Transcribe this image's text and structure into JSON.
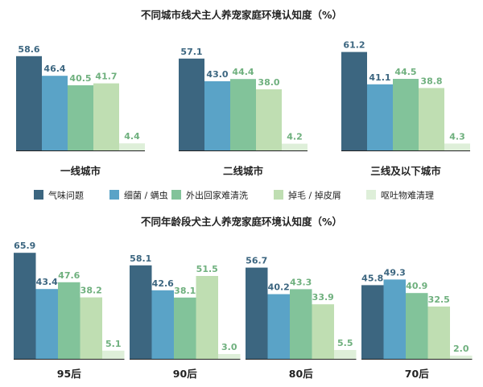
{
  "colors": {
    "series": [
      "#3c6680",
      "#5aa3c7",
      "#82c39a",
      "#bfdeb2",
      "#deefd9"
    ],
    "label_dark": "#3c6680",
    "label_light": "#6fb07e",
    "axis": "#222222"
  },
  "chart_data": [
    {
      "type": "bar",
      "title": "不同城市线犬主人养宠家庭环境认知度（%）",
      "categories": [
        "一线城市",
        "二线城市",
        "三线及以下城市"
      ],
      "series": [
        {
          "name": "气味问题",
          "values": [
            58.6,
            57.1,
            61.2
          ]
        },
        {
          "name": "细菌 / 螨虫",
          "values": [
            46.4,
            43.0,
            41.1
          ]
        },
        {
          "name": "外出回家难清洗",
          "values": [
            40.5,
            44.4,
            44.5
          ]
        },
        {
          "name": "掉毛 / 掉皮屑",
          "values": [
            41.7,
            38.0,
            38.8
          ]
        },
        {
          "name": "呕吐物难清理",
          "values": [
            4.4,
            4.2,
            4.3
          ]
        }
      ],
      "value_labels": [
        [
          "58.6",
          "57.1",
          "61.2"
        ],
        [
          "46.4",
          "43.0",
          "41.1"
        ],
        [
          "40.5",
          "44.4",
          "44.5"
        ],
        [
          "41.7",
          "38.0",
          "38.8"
        ],
        [
          "4.4",
          "4.2",
          "4.3"
        ]
      ],
      "ylim": [
        0,
        70
      ],
      "grid": false,
      "legend": "bottom"
    },
    {
      "type": "bar",
      "title": "不同年龄段犬主人养宠家庭环境认知度（%）",
      "categories": [
        "95后",
        "90后",
        "80后",
        "70后"
      ],
      "series": [
        {
          "name": "气味问题",
          "values": [
            65.9,
            58.1,
            56.7,
            45.8
          ]
        },
        {
          "name": "细菌 / 螨虫",
          "values": [
            43.4,
            42.6,
            40.2,
            49.3
          ]
        },
        {
          "name": "外出回家难清洗",
          "values": [
            47.6,
            38.1,
            43.3,
            40.9
          ]
        },
        {
          "name": "掉毛 / 掉皮屑",
          "values": [
            38.2,
            51.5,
            33.9,
            32.5
          ]
        },
        {
          "name": "呕吐物难清理",
          "values": [
            5.1,
            3.0,
            5.5,
            2.0
          ]
        }
      ],
      "value_labels": [
        [
          "65.9",
          "58.1",
          "56.7",
          "45.8"
        ],
        [
          "43.4",
          "42.6",
          "40.2",
          "49.3"
        ],
        [
          "47.6",
          "38.1",
          "43.3",
          "40.9"
        ],
        [
          "38.2",
          "51.5",
          "33.9",
          "32.5"
        ],
        [
          "5.1",
          "3.0",
          "5.5",
          "2.0"
        ]
      ],
      "ylim": [
        0,
        70
      ],
      "grid": false,
      "legend": "shared"
    }
  ]
}
